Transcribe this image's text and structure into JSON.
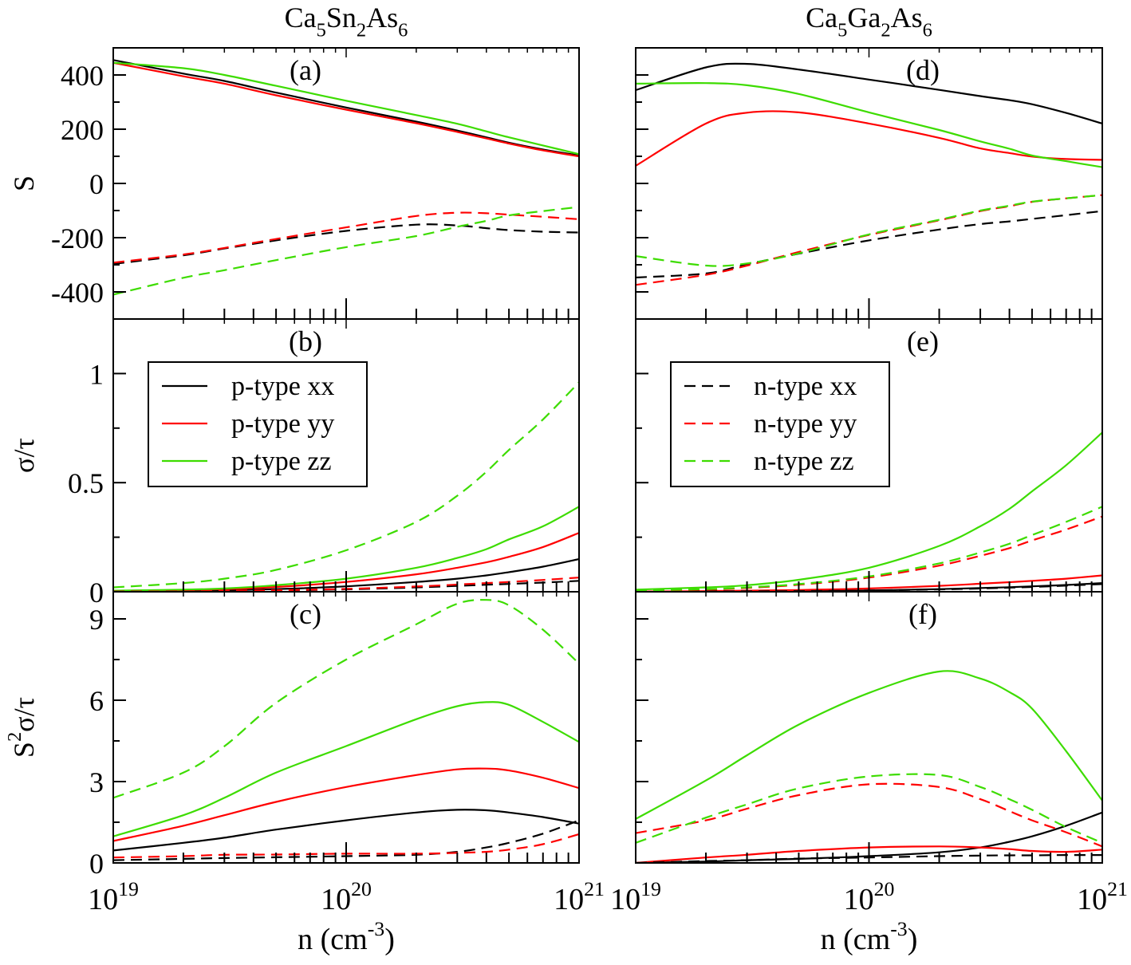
{
  "column_titles": [
    "Ca₅Sn₂As₆",
    "Ca₅Ga₂As₆"
  ],
  "x_axis": {
    "label": "n (cm⁻³)",
    "scale": "log",
    "lim": [
      1e+19,
      1e+21
    ],
    "tick_values": [
      1e+19,
      1e+20,
      1e+21
    ],
    "tick_labels": [
      "10¹⁹",
      "10²⁰",
      "10²¹"
    ]
  },
  "styles": {
    "p-type xx": {
      "color": "#000000",
      "dashed": false
    },
    "p-type yy": {
      "color": "#ff0000",
      "dashed": false
    },
    "p-type zz": {
      "color": "#3ddc00",
      "dashed": false
    },
    "n-type xx": {
      "color": "#000000",
      "dashed": true
    },
    "n-type yy": {
      "color": "#ff0000",
      "dashed": true
    },
    "n-type zz": {
      "color": "#3ddc00",
      "dashed": true
    }
  },
  "chart_data": [
    {
      "type": "line",
      "panel_label": "(a)",
      "compound": "Ca₅Sn₂As₆",
      "ylabel": "S",
      "ylim": [
        -500,
        500
      ],
      "ytick_values": [
        -400,
        -200,
        0,
        200,
        400
      ],
      "ytick_labels": [
        "-400",
        "-200",
        "0",
        "200",
        "400"
      ],
      "yminor_step": 100,
      "x": [
        1e+19,
        2e+19,
        3e+19,
        5e+19,
        1e+20,
        2e+20,
        3e+20,
        4e+20,
        5e+20,
        7e+20,
        1e+21
      ],
      "series": [
        {
          "name": "p-type xx",
          "values": [
            455,
            405,
            378,
            335,
            280,
            228,
            195,
            170,
            150,
            125,
            103
          ]
        },
        {
          "name": "p-type yy",
          "values": [
            445,
            395,
            368,
            325,
            272,
            222,
            190,
            166,
            147,
            122,
            100
          ]
        },
        {
          "name": "p-type zz",
          "values": [
            445,
            425,
            400,
            360,
            305,
            252,
            220,
            192,
            170,
            140,
            108
          ]
        },
        {
          "name": "n-type xx",
          "values": [
            -297,
            -265,
            -240,
            -210,
            -175,
            -152,
            -155,
            -165,
            -172,
            -178,
            -181
          ]
        },
        {
          "name": "n-type yy",
          "values": [
            -292,
            -262,
            -238,
            -205,
            -162,
            -120,
            -108,
            -110,
            -115,
            -123,
            -132
          ]
        },
        {
          "name": "n-type zz",
          "values": [
            -410,
            -348,
            -320,
            -283,
            -235,
            -194,
            -160,
            -138,
            -118,
            -102,
            -87
          ]
        }
      ]
    },
    {
      "type": "line",
      "panel_label": "(b)",
      "compound": "Ca₅Sn₂As₆",
      "ylabel": "σ/τ",
      "ylim": [
        0,
        1.25
      ],
      "ytick_values": [
        0,
        0.5,
        1
      ],
      "ytick_labels": [
        "0",
        "0.5",
        "1"
      ],
      "yminor_step": 0.25,
      "x": [
        1e+19,
        2e+19,
        3e+19,
        5e+19,
        1e+20,
        2e+20,
        3e+20,
        4e+20,
        5e+20,
        7e+20,
        1e+21
      ],
      "legend": {
        "placement": "upper-left",
        "entries": [
          "p-type xx",
          "p-type yy",
          "p-type zz"
        ]
      },
      "series": [
        {
          "name": "p-type xx",
          "values": [
            0.002,
            0.004,
            0.007,
            0.012,
            0.025,
            0.045,
            0.06,
            0.075,
            0.09,
            0.115,
            0.15
          ]
        },
        {
          "name": "p-type yy",
          "values": [
            0.004,
            0.008,
            0.012,
            0.022,
            0.045,
            0.08,
            0.11,
            0.135,
            0.16,
            0.205,
            0.27
          ]
        },
        {
          "name": "p-type zz",
          "values": [
            0.005,
            0.01,
            0.015,
            0.03,
            0.06,
            0.11,
            0.155,
            0.195,
            0.24,
            0.3,
            0.39
          ]
        },
        {
          "name": "n-type xx",
          "values": [
            0.001,
            0.002,
            0.003,
            0.006,
            0.011,
            0.02,
            0.027,
            0.032,
            0.036,
            0.042,
            0.05
          ]
        },
        {
          "name": "n-type yy",
          "values": [
            0.001,
            0.002,
            0.004,
            0.007,
            0.013,
            0.024,
            0.033,
            0.04,
            0.045,
            0.054,
            0.065
          ]
        },
        {
          "name": "n-type zz",
          "values": [
            0.02,
            0.04,
            0.06,
            0.1,
            0.19,
            0.32,
            0.44,
            0.55,
            0.65,
            0.79,
            0.96
          ]
        }
      ]
    },
    {
      "type": "line",
      "panel_label": "(c)",
      "compound": "Ca₅Sn₂As₆",
      "ylabel": "S²σ/τ",
      "ylim": [
        0,
        10
      ],
      "ytick_values": [
        0,
        3,
        6,
        9
      ],
      "ytick_labels": [
        "0",
        "3",
        "6",
        "9"
      ],
      "yminor_step": 1.5,
      "x": [
        1e+19,
        2e+19,
        3e+19,
        5e+19,
        1e+20,
        2e+20,
        3e+20,
        4e+20,
        5e+20,
        7e+20,
        1e+21
      ],
      "series": [
        {
          "name": "p-type xx",
          "values": [
            0.46,
            0.74,
            0.93,
            1.23,
            1.57,
            1.86,
            1.96,
            1.94,
            1.86,
            1.69,
            1.45
          ]
        },
        {
          "name": "p-type yy",
          "values": [
            0.81,
            1.37,
            1.76,
            2.25,
            2.8,
            3.24,
            3.45,
            3.48,
            3.41,
            3.14,
            2.76
          ]
        },
        {
          "name": "p-type zz",
          "values": [
            0.98,
            1.76,
            2.4,
            3.33,
            4.31,
            5.3,
            5.78,
            5.93,
            5.83,
            5.2,
            4.46
          ]
        },
        {
          "name": "n-type xx",
          "values": [
            0.1,
            0.15,
            0.18,
            0.21,
            0.25,
            0.3,
            0.41,
            0.57,
            0.74,
            1.08,
            1.57
          ]
        },
        {
          "name": "n-type yy",
          "values": [
            0.2,
            0.25,
            0.3,
            0.31,
            0.34,
            0.34,
            0.37,
            0.41,
            0.49,
            0.69,
            1.06
          ]
        },
        {
          "name": "n-type zz",
          "values": [
            2.4,
            3.33,
            4.3,
            5.9,
            7.5,
            8.8,
            9.56,
            9.7,
            9.5,
            8.6,
            7.35
          ]
        }
      ]
    },
    {
      "type": "line",
      "panel_label": "(d)",
      "compound": "Ca₅Ga₂As₆",
      "ylabel": "",
      "ylim": [
        -500,
        500
      ],
      "ytick_values": [
        -400,
        -200,
        0,
        200,
        400
      ],
      "ytick_labels": [],
      "yminor_step": 100,
      "x": [
        1e+19,
        2e+19,
        3e+19,
        5e+19,
        1e+20,
        2e+20,
        3e+20,
        4e+20,
        5e+20,
        7e+20,
        1e+21
      ],
      "series": [
        {
          "name": "p-type xx",
          "values": [
            344,
            428,
            441,
            420,
            383,
            345,
            322,
            307,
            292,
            260,
            221
          ]
        },
        {
          "name": "p-type yy",
          "values": [
            65,
            221,
            261,
            262,
            221,
            168,
            129,
            112,
            99,
            90,
            87
          ]
        },
        {
          "name": "p-type zz",
          "values": [
            368,
            370,
            362,
            330,
            262,
            197,
            155,
            128,
            103,
            82,
            60
          ]
        },
        {
          "name": "n-type xx",
          "values": [
            -347,
            -332,
            -298,
            -259,
            -210,
            -170,
            -150,
            -140,
            -131,
            -117,
            -102
          ]
        },
        {
          "name": "n-type yy",
          "values": [
            -374,
            -337,
            -303,
            -253,
            -190,
            -136,
            -102,
            -84,
            -68,
            -55,
            -43
          ]
        },
        {
          "name": "n-type zz",
          "values": [
            -268,
            -303,
            -295,
            -258,
            -188,
            -134,
            -100,
            -82,
            -67,
            -55,
            -43
          ]
        }
      ]
    },
    {
      "type": "line",
      "panel_label": "(e)",
      "compound": "Ca₅Ga₂As₆",
      "ylabel": "",
      "ylim": [
        0,
        1.25
      ],
      "ytick_values": [
        0,
        0.5,
        1
      ],
      "ytick_labels": [],
      "yminor_step": 0.25,
      "x": [
        1e+19,
        2e+19,
        3e+19,
        5e+19,
        1e+20,
        2e+20,
        3e+20,
        4e+20,
        5e+20,
        7e+20,
        1e+21
      ],
      "legend": {
        "placement": "upper-left",
        "entries": [
          "n-type xx",
          "n-type yy",
          "n-type zz"
        ]
      },
      "series": [
        {
          "name": "p-type xx",
          "values": [
            0,
            0.001,
            0.002,
            0.003,
            0.006,
            0.012,
            0.017,
            0.021,
            0.025,
            0.031,
            0.04
          ]
        },
        {
          "name": "p-type yy",
          "values": [
            0.001,
            0.003,
            0.005,
            0.008,
            0.015,
            0.027,
            0.037,
            0.044,
            0.05,
            0.06,
            0.075
          ]
        },
        {
          "name": "p-type zz",
          "values": [
            0.01,
            0.02,
            0.03,
            0.055,
            0.11,
            0.21,
            0.3,
            0.38,
            0.46,
            0.58,
            0.73
          ]
        },
        {
          "name": "n-type xx",
          "values": [
            0,
            0.001,
            0.002,
            0.003,
            0.006,
            0.011,
            0.015,
            0.019,
            0.022,
            0.028,
            0.035
          ]
        },
        {
          "name": "n-type yy",
          "values": [
            0.005,
            0.01,
            0.018,
            0.032,
            0.065,
            0.12,
            0.165,
            0.2,
            0.235,
            0.285,
            0.345
          ]
        },
        {
          "name": "n-type zz",
          "values": [
            0.006,
            0.012,
            0.02,
            0.035,
            0.07,
            0.13,
            0.18,
            0.22,
            0.26,
            0.32,
            0.39
          ]
        }
      ]
    },
    {
      "type": "line",
      "panel_label": "(f)",
      "compound": "Ca₅Ga₂As₆",
      "ylabel": "",
      "ylim": [
        0,
        10
      ],
      "ytick_values": [
        0,
        3,
        6,
        9
      ],
      "ytick_labels": [],
      "yminor_step": 1.5,
      "x": [
        1e+19,
        2e+19,
        3e+19,
        5e+19,
        1e+20,
        2e+20,
        3e+20,
        4e+20,
        5e+20,
        7e+20,
        1e+21
      ],
      "series": [
        {
          "name": "p-type xx",
          "values": [
            0,
            0.05,
            0.1,
            0.15,
            0.25,
            0.39,
            0.57,
            0.78,
            0.98,
            1.37,
            1.86
          ]
        },
        {
          "name": "p-type yy",
          "values": [
            0,
            0.2,
            0.3,
            0.44,
            0.57,
            0.61,
            0.57,
            0.51,
            0.44,
            0.41,
            0.49
          ]
        },
        {
          "name": "p-type zz",
          "values": [
            1.62,
            3.04,
            3.97,
            5.1,
            6.27,
            7.06,
            6.8,
            6.3,
            5.69,
            4.12,
            2.3
          ]
        },
        {
          "name": "n-type xx",
          "values": [
            0,
            0.07,
            0.1,
            0.16,
            0.2,
            0.25,
            0.27,
            0.28,
            0.28,
            0.29,
            0.29
          ]
        },
        {
          "name": "n-type yy",
          "values": [
            1.1,
            1.57,
            2.0,
            2.5,
            2.9,
            2.8,
            2.35,
            1.91,
            1.57,
            1.13,
            0.61
          ]
        },
        {
          "name": "n-type zz",
          "values": [
            0.74,
            1.67,
            2.16,
            2.75,
            3.19,
            3.24,
            2.8,
            2.35,
            1.96,
            1.32,
            0.74
          ]
        }
      ]
    }
  ]
}
